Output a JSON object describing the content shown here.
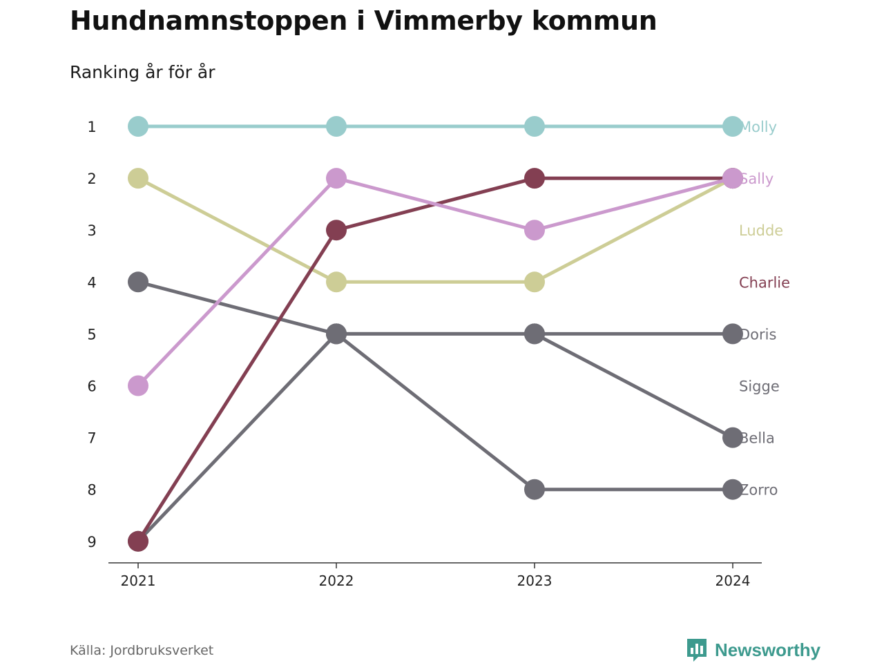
{
  "title": "Hundnamnstoppen i Vimmerby kommun",
  "subtitle": "Ranking år för år",
  "source": "Källa: Jordbruksverket",
  "brand": "Newsworthy",
  "chart_data": {
    "type": "line",
    "chart_kind": "bump",
    "title": "Hundnamnstoppen i Vimmerby kommun",
    "subtitle": "Ranking år för år",
    "xlabel": "",
    "ylabel": "",
    "x": [
      "2021",
      "2022",
      "2023",
      "2024"
    ],
    "ylim": [
      9,
      1
    ],
    "y_inverted": true,
    "y_ticks": [
      1,
      2,
      3,
      4,
      5,
      6,
      7,
      8,
      9
    ],
    "grid": false,
    "legend": "direct labels at right end of lines",
    "series": [
      {
        "name": "Doris",
        "values": [
          9,
          5,
          5,
          5
        ],
        "color": "#6e6d75"
      },
      {
        "name": "Zorro",
        "values": [
          4,
          5,
          8,
          8
        ],
        "color": "#6e6d75"
      },
      {
        "name": "Bella",
        "values": [
          null,
          5,
          5,
          7
        ],
        "color": "#6e6d75"
      },
      {
        "name": "Sigge",
        "values": [
          null,
          null,
          null,
          2
        ],
        "color": "#6e6d75"
      },
      {
        "name": "Ludde",
        "values": [
          2,
          4,
          4,
          2
        ],
        "color": "#cdcd96"
      },
      {
        "name": "Charlie",
        "values": [
          9,
          3,
          2,
          2
        ],
        "color": "#833f52"
      },
      {
        "name": "Sally",
        "values": [
          6,
          2,
          3,
          2
        ],
        "color": "#cb99cd"
      },
      {
        "name": "Molly",
        "values": [
          1,
          1,
          1,
          1
        ],
        "color": "#99cccc"
      }
    ],
    "end_labels": [
      {
        "name": "Molly",
        "rank": 1,
        "color": "#99cccc"
      },
      {
        "name": "Sally",
        "rank": 2,
        "color": "#cb99cd"
      },
      {
        "name": "Ludde",
        "rank": 3,
        "color": "#cdcd96"
      },
      {
        "name": "Charlie",
        "rank": 4,
        "color": "#833f52"
      },
      {
        "name": "Doris",
        "rank": 5,
        "color": "#6e6d75"
      },
      {
        "name": "Sigge",
        "rank": 6,
        "color": "#6e6d75"
      },
      {
        "name": "Bella",
        "rank": 7,
        "color": "#6e6d75"
      },
      {
        "name": "Zorro",
        "rank": 8,
        "color": "#6e6d75"
      }
    ]
  }
}
